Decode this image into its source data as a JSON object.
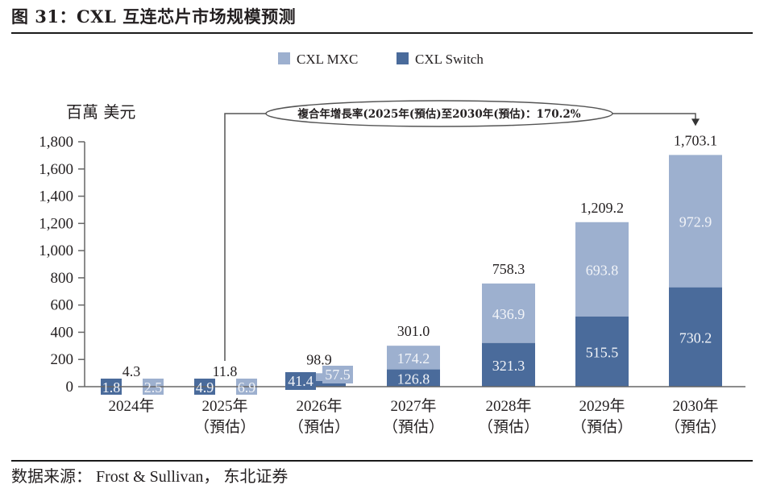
{
  "figure": {
    "title": "图 31：CXL 互连芯片市场规模预测",
    "source": "数据来源： Frost & Sullivan， 东北证券"
  },
  "chart_data": {
    "type": "bar",
    "stacked": true,
    "title": "图 31：CXL 互连芯片市场规模预测",
    "ylabel": "百萬 美元",
    "xlabel": "",
    "ylim": [
      0,
      1800
    ],
    "yticks": [
      0,
      200,
      400,
      600,
      800,
      1000,
      1200,
      1400,
      1600,
      1800
    ],
    "ytick_labels": [
      "0",
      "200",
      "400",
      "600",
      "800",
      "1,000",
      "1,200",
      "1,400",
      "1,600",
      "1,800"
    ],
    "grid": false,
    "legend_position": "top-center",
    "categories": [
      "2024年",
      "2025年",
      "2026年",
      "2027年",
      "2028年",
      "2029年",
      "2030年"
    ],
    "category_sublabels": [
      "",
      "（預估）",
      "（預估）",
      "（預估）",
      "（預估）",
      "（預估）",
      "（預估）"
    ],
    "series": [
      {
        "name": "CXL Switch",
        "color": "#4a6b9b",
        "values": [
          1.8,
          4.9,
          41.4,
          126.8,
          321.3,
          515.5,
          730.2
        ],
        "labels": [
          "1.8",
          "4.9",
          "41.4",
          "126.8",
          "321.3",
          "515.5",
          "730.2"
        ]
      },
      {
        "name": "CXL MXC",
        "color": "#9db0cf",
        "values": [
          2.5,
          6.9,
          57.5,
          174.2,
          436.9,
          693.8,
          972.9
        ],
        "labels": [
          "2.5",
          "6.9",
          "57.5",
          "174.2",
          "436.9",
          "693.8",
          "972.9"
        ]
      }
    ],
    "totals": [
      4.3,
      11.8,
      98.9,
      301.0,
      758.3,
      1209.2,
      1703.1
    ],
    "total_labels": [
      "4.3",
      "11.8",
      "98.9",
      "301.0",
      "758.3",
      "1,209.2",
      "1,703.1"
    ],
    "legend": [
      "CXL MXC",
      "CXL Switch"
    ],
    "annotation": {
      "text": "複合年增長率(2025年(預估)至2030年(預估)：170.2%",
      "from_category": "2025年",
      "to_category": "2030年",
      "cagr_percent": 170.2
    }
  }
}
